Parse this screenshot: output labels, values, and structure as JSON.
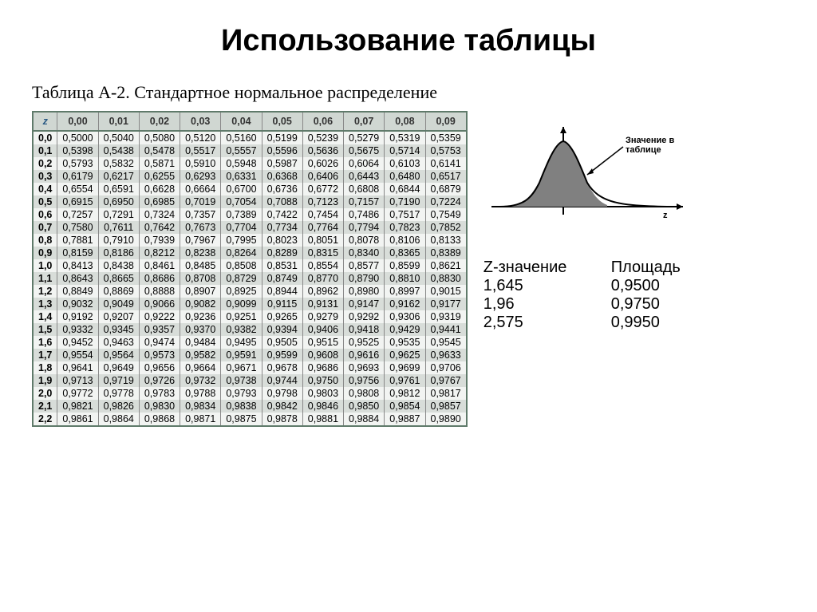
{
  "title": "Использование таблицы",
  "subtitle": "Таблица А-2. Стандартное нормальное распределение",
  "table": {
    "z_header": "z",
    "col_headers": [
      "0,00",
      "0,01",
      "0,02",
      "0,03",
      "0,04",
      "0,05",
      "0,06",
      "0,07",
      "0,08",
      "0,09"
    ],
    "row_headers": [
      "0,0",
      "0,1",
      "0,2",
      "0,3",
      "0,4",
      "0,5",
      "0,6",
      "0,7",
      "0,8",
      "0,9",
      "1,0",
      "1,1",
      "1,2",
      "1,3",
      "1,4",
      "1,5",
      "1,6",
      "1,7",
      "1,8",
      "1,9",
      "2,0",
      "2,1",
      "2,2"
    ],
    "rows": [
      [
        "0,5000",
        "0,5040",
        "0,5080",
        "0,5120",
        "0,5160",
        "0,5199",
        "0,5239",
        "0,5279",
        "0,5319",
        "0,5359"
      ],
      [
        "0,5398",
        "0,5438",
        "0,5478",
        "0,5517",
        "0,5557",
        "0,5596",
        "0,5636",
        "0,5675",
        "0,5714",
        "0,5753"
      ],
      [
        "0,5793",
        "0,5832",
        "0,5871",
        "0,5910",
        "0,5948",
        "0,5987",
        "0,6026",
        "0,6064",
        "0,6103",
        "0,6141"
      ],
      [
        "0,6179",
        "0,6217",
        "0,6255",
        "0,6293",
        "0,6331",
        "0,6368",
        "0,6406",
        "0,6443",
        "0,6480",
        "0,6517"
      ],
      [
        "0,6554",
        "0,6591",
        "0,6628",
        "0,6664",
        "0,6700",
        "0,6736",
        "0,6772",
        "0,6808",
        "0,6844",
        "0,6879"
      ],
      [
        "0,6915",
        "0,6950",
        "0,6985",
        "0,7019",
        "0,7054",
        "0,7088",
        "0,7123",
        "0,7157",
        "0,7190",
        "0,7224"
      ],
      [
        "0,7257",
        "0,7291",
        "0,7324",
        "0,7357",
        "0,7389",
        "0,7422",
        "0,7454",
        "0,7486",
        "0,7517",
        "0,7549"
      ],
      [
        "0,7580",
        "0,7611",
        "0,7642",
        "0,7673",
        "0,7704",
        "0,7734",
        "0,7764",
        "0,7794",
        "0,7823",
        "0,7852"
      ],
      [
        "0,7881",
        "0,7910",
        "0,7939",
        "0,7967",
        "0,7995",
        "0,8023",
        "0,8051",
        "0,8078",
        "0,8106",
        "0,8133"
      ],
      [
        "0,8159",
        "0,8186",
        "0,8212",
        "0,8238",
        "0,8264",
        "0,8289",
        "0,8315",
        "0,8340",
        "0,8365",
        "0,8389"
      ],
      [
        "0,8413",
        "0,8438",
        "0,8461",
        "0,8485",
        "0,8508",
        "0,8531",
        "0,8554",
        "0,8577",
        "0,8599",
        "0,8621"
      ],
      [
        "0,8643",
        "0,8665",
        "0,8686",
        "0,8708",
        "0,8729",
        "0,8749",
        "0,8770",
        "0,8790",
        "0,8810",
        "0,8830"
      ],
      [
        "0,8849",
        "0,8869",
        "0,8888",
        "0,8907",
        "0,8925",
        "0,8944",
        "0,8962",
        "0,8980",
        "0,8997",
        "0,9015"
      ],
      [
        "0,9032",
        "0,9049",
        "0,9066",
        "0,9082",
        "0,9099",
        "0,9115",
        "0,9131",
        "0,9147",
        "0,9162",
        "0,9177"
      ],
      [
        "0,9192",
        "0,9207",
        "0,9222",
        "0,9236",
        "0,9251",
        "0,9265",
        "0,9279",
        "0,9292",
        "0,9306",
        "0,9319"
      ],
      [
        "0,9332",
        "0,9345",
        "0,9357",
        "0,9370",
        "0,9382",
        "0,9394",
        "0,9406",
        "0,9418",
        "0,9429",
        "0,9441"
      ],
      [
        "0,9452",
        "0,9463",
        "0,9474",
        "0,9484",
        "0,9495",
        "0,9505",
        "0,9515",
        "0,9525",
        "0,9535",
        "0,9545"
      ],
      [
        "0,9554",
        "0,9564",
        "0,9573",
        "0,9582",
        "0,9591",
        "0,9599",
        "0,9608",
        "0,9616",
        "0,9625",
        "0,9633"
      ],
      [
        "0,9641",
        "0,9649",
        "0,9656",
        "0,9664",
        "0,9671",
        "0,9678",
        "0,9686",
        "0,9693",
        "0,9699",
        "0,9706"
      ],
      [
        "0,9713",
        "0,9719",
        "0,9726",
        "0,9732",
        "0,9738",
        "0,9744",
        "0,9750",
        "0,9756",
        "0,9761",
        "0,9767"
      ],
      [
        "0,9772",
        "0,9778",
        "0,9783",
        "0,9788",
        "0,9793",
        "0,9798",
        "0,9803",
        "0,9808",
        "0,9812",
        "0,9817"
      ],
      [
        "0,9821",
        "0,9826",
        "0,9830",
        "0,9834",
        "0,9838",
        "0,9842",
        "0,9846",
        "0,9850",
        "0,9854",
        "0,9857"
      ],
      [
        "0,9861",
        "0,9864",
        "0,9868",
        "0,9871",
        "0,9875",
        "0,9878",
        "0,9881",
        "0,9884",
        "0,9887",
        "0,9890"
      ]
    ],
    "header_bg": "#d0d7d2",
    "row_odd_bg": "#f2f4f2",
    "row_even_bg": "#d8ddd9",
    "border_color": "#5f7a6a",
    "font_size": 12.5
  },
  "curve": {
    "annotation": "Значение в таблице",
    "z_label": "z",
    "fill_color": "#808080",
    "line_color": "#000000",
    "axis_color": "#000000"
  },
  "values": {
    "header_z": "Z-значение",
    "header_area": "Площадь",
    "rows": [
      {
        "z": "1,645",
        "area": "0,9500"
      },
      {
        "z": "1,96",
        "area": "0,9750"
      },
      {
        "z": "2,575",
        "area": "0,9950"
      }
    ],
    "font_size": 20
  }
}
